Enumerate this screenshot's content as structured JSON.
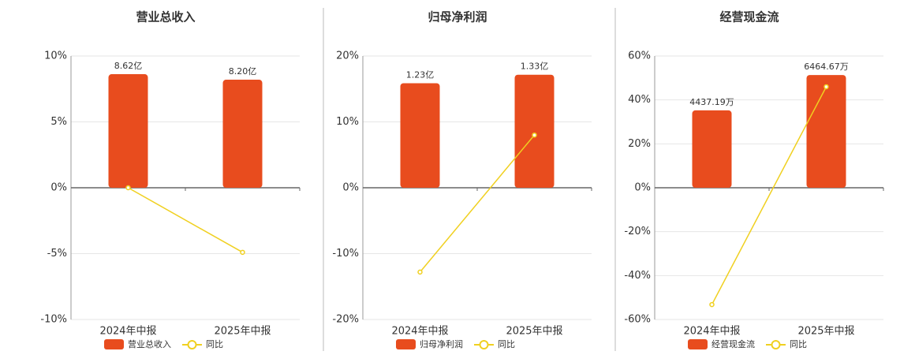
{
  "chart_data": [
    {
      "type": "bar",
      "title": "营业总收入",
      "categories": [
        "2024年中报",
        "2025年中报"
      ],
      "series": [
        {
          "name": "营业总收入",
          "type": "bar",
          "color": "#e84c1e",
          "axis": "y2",
          "values": [
            8.62,
            8.2
          ],
          "value_labels": [
            "8.62亿",
            "8.20亿"
          ]
        },
        {
          "name": "同比",
          "type": "line",
          "color": "#f0d020",
          "values": [
            0.0,
            -4.9
          ]
        }
      ],
      "ylim": [
        -10,
        10
      ],
      "yticks": [
        {
          "value": -10,
          "label": "-10%"
        },
        {
          "value": -5,
          "label": "-5%"
        },
        {
          "value": 0,
          "label": "0%"
        },
        {
          "value": 5,
          "label": "5%"
        },
        {
          "value": 10,
          "label": "10%"
        }
      ],
      "y2lim": [
        -10,
        10
      ],
      "grid": true
    },
    {
      "type": "bar",
      "title": "归母净利润",
      "categories": [
        "2024年中报",
        "2025年中报"
      ],
      "series": [
        {
          "name": "归母净利润",
          "type": "bar",
          "color": "#e84c1e",
          "axis": "y2",
          "values": [
            1.23,
            1.33
          ],
          "value_labels": [
            "1.23亿",
            "1.33亿"
          ]
        },
        {
          "name": "同比",
          "type": "line",
          "color": "#f0d020",
          "values": [
            -12.8,
            8.0
          ]
        }
      ],
      "ylim": [
        -20,
        20
      ],
      "yticks": [
        {
          "value": -20,
          "label": "-20%"
        },
        {
          "value": -10,
          "label": "-10%"
        },
        {
          "value": 0,
          "label": "0%"
        },
        {
          "value": 10,
          "label": "10%"
        },
        {
          "value": 20,
          "label": "20%"
        }
      ],
      "y2lim": [
        -1.55,
        1.55
      ],
      "grid": true
    },
    {
      "type": "bar",
      "title": "经营现金流",
      "categories": [
        "2024年中报",
        "2025年中报"
      ],
      "series": [
        {
          "name": "经营现金流",
          "type": "bar",
          "color": "#e84c1e",
          "axis": "y2",
          "values": [
            4437.19,
            6464.67
          ],
          "value_labels": [
            "4437.19万",
            "6464.67万"
          ]
        },
        {
          "name": "同比",
          "type": "line",
          "color": "#f0d020",
          "values": [
            -53.2,
            46.0
          ]
        }
      ],
      "ylim": [
        -60,
        60
      ],
      "yticks": [
        {
          "value": -60,
          "label": "-60%"
        },
        {
          "value": -40,
          "label": "-40%"
        },
        {
          "value": -20,
          "label": "-20%"
        },
        {
          "value": 0,
          "label": "0%"
        },
        {
          "value": 20,
          "label": "20%"
        },
        {
          "value": 40,
          "label": "40%"
        },
        {
          "value": 60,
          "label": "60%"
        }
      ],
      "y2lim": [
        -7555,
        7555
      ],
      "grid": true
    }
  ]
}
